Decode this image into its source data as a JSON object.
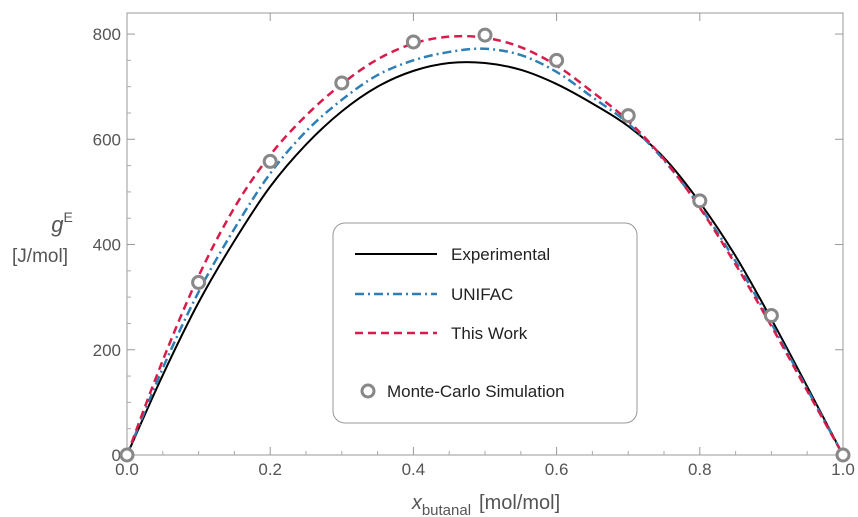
{
  "chart_data": {
    "type": "line",
    "xlabel": {
      "symbol": "x",
      "subscript": "butanal",
      "unit": "[mol/mol]"
    },
    "ylabel": {
      "symbol": "g",
      "superscript": "E",
      "unit": "[J/mol]"
    },
    "xlim": [
      0,
      1
    ],
    "ylim": [
      0,
      840
    ],
    "x_ticks": [
      0.0,
      0.2,
      0.4,
      0.6,
      0.8,
      1.0
    ],
    "x_tick_labels": [
      "0.0",
      "0.2",
      "0.4",
      "0.6",
      "0.8",
      "1.0"
    ],
    "y_ticks": [
      0,
      200,
      400,
      600,
      800
    ],
    "y_tick_labels": [
      "0",
      "200",
      "400",
      "600",
      "800"
    ],
    "grid": false,
    "legend_position": "center",
    "series": [
      {
        "name": "Experimental",
        "style": "solid",
        "color": "#000000",
        "x": [
          0,
          0.05,
          0.1,
          0.15,
          0.2,
          0.25,
          0.3,
          0.35,
          0.4,
          0.45,
          0.5,
          0.55,
          0.6,
          0.65,
          0.7,
          0.75,
          0.8,
          0.85,
          0.9,
          0.95,
          1.0
        ],
        "y": [
          0,
          152,
          290,
          407,
          510,
          590,
          653,
          700,
          730,
          745,
          745,
          732,
          705,
          668,
          625,
          565,
          480,
          378,
          258,
          130,
          0
        ]
      },
      {
        "name": "UNIFAC",
        "style": "dash-dot",
        "color": "#2e7fb5",
        "x": [
          0,
          0.05,
          0.1,
          0.15,
          0.2,
          0.25,
          0.3,
          0.35,
          0.4,
          0.45,
          0.5,
          0.55,
          0.6,
          0.65,
          0.7,
          0.75,
          0.8,
          0.85,
          0.9,
          0.95,
          1.0
        ],
        "y": [
          0,
          165,
          310,
          430,
          535,
          615,
          675,
          722,
          750,
          766,
          772,
          760,
          728,
          680,
          630,
          560,
          472,
          368,
          250,
          125,
          0
        ]
      },
      {
        "name": "This Work",
        "style": "dashed",
        "color": "#d81b4a",
        "x": [
          0,
          0.05,
          0.1,
          0.15,
          0.2,
          0.25,
          0.3,
          0.35,
          0.4,
          0.45,
          0.5,
          0.55,
          0.6,
          0.65,
          0.7,
          0.75,
          0.8,
          0.85,
          0.9,
          0.95,
          1.0
        ],
        "y": [
          0,
          180,
          340,
          470,
          570,
          645,
          705,
          752,
          782,
          795,
          793,
          775,
          740,
          690,
          635,
          562,
          470,
          362,
          245,
          122,
          0
        ]
      },
      {
        "name": "Monte-Carlo Simulation",
        "style": "markers",
        "color": "#888888",
        "x": [
          0.0,
          0.1,
          0.2,
          0.3,
          0.4,
          0.5,
          0.6,
          0.7,
          0.8,
          0.9,
          1.0
        ],
        "y": [
          0,
          328,
          558,
          707,
          785,
          798,
          750,
          645,
          483,
          265,
          0
        ]
      }
    ]
  }
}
